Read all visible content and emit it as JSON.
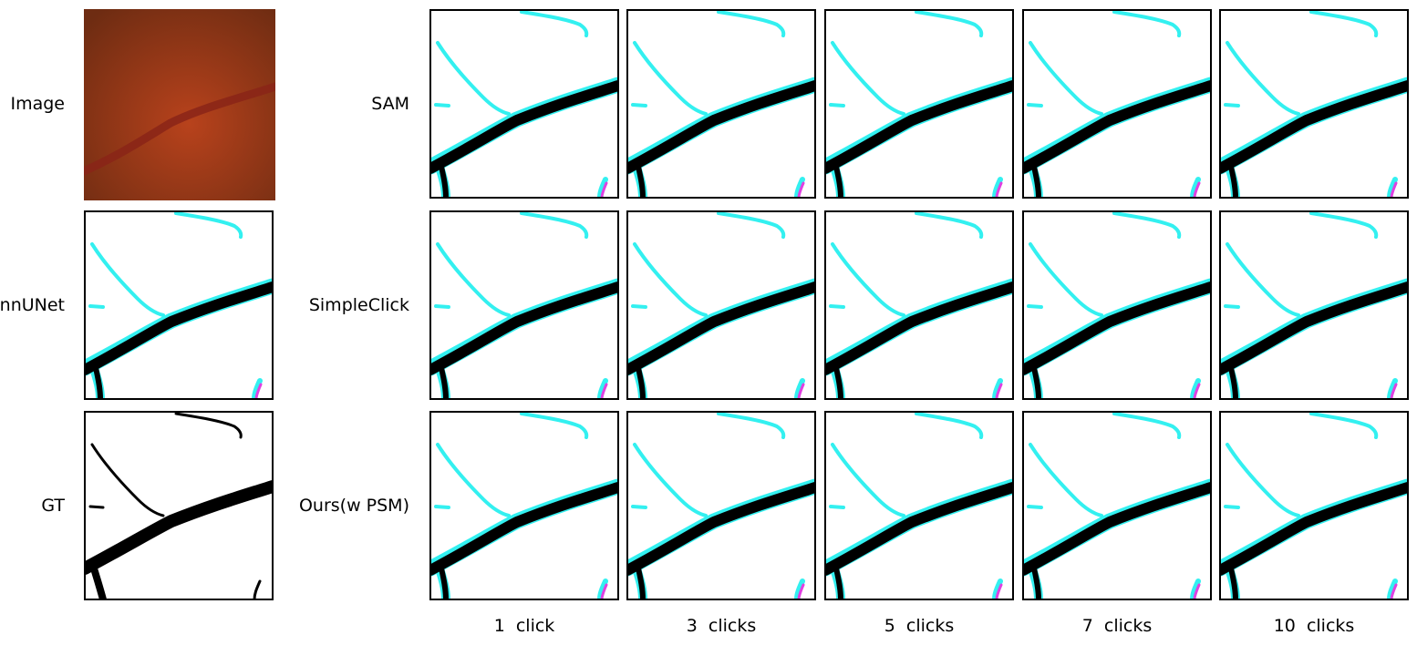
{
  "left_rows": [
    {
      "label": "Image"
    },
    {
      "label": "nnUNet"
    },
    {
      "label": "GT"
    }
  ],
  "right_rows": [
    {
      "label": "SAM"
    },
    {
      "label": "SimpleClick"
    },
    {
      "label": "Ours(w  PSM)"
    }
  ],
  "columns": [
    "1  click",
    "3  clicks",
    "5  clicks",
    "7  clicks",
    "10  clicks"
  ],
  "colors": {
    "fundus_dark": "#7a2a12",
    "fundus_light": "#b8421c",
    "vessel_fundus": "#8a2418",
    "prediction_only": "#33f0f0",
    "ground_truth_only": "#e040e0",
    "overlap": "#000000"
  }
}
